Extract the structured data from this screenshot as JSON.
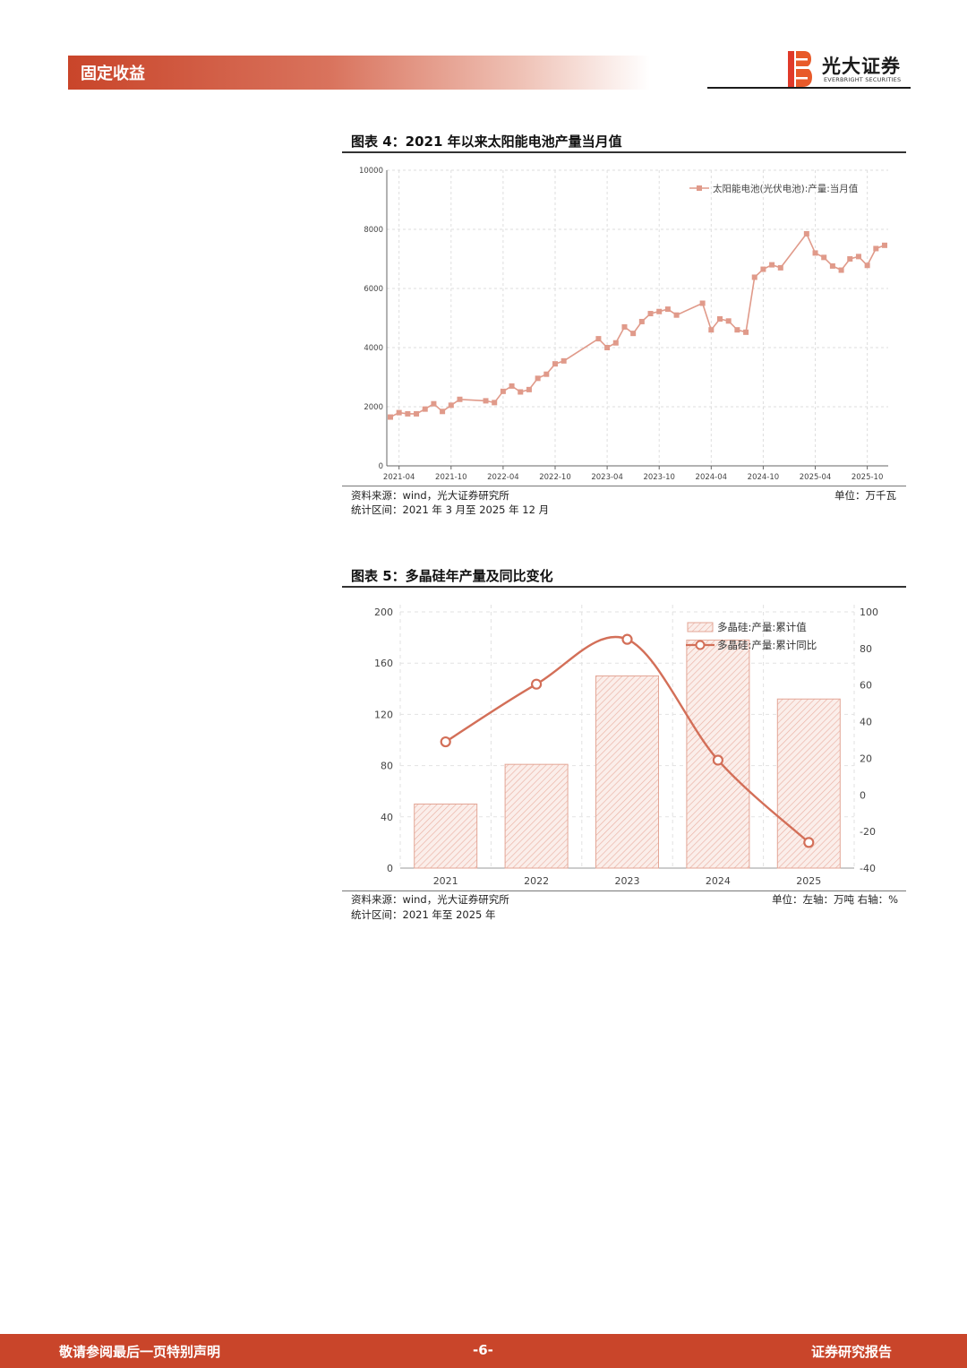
{
  "header": {
    "section": "固定收益",
    "brand_cn": "光大证券",
    "brand_en": "EVERBRIGHT SECURITIES"
  },
  "figure4": {
    "title": "图表 4：2021 年以来太阳能电池产量当月值",
    "source": "资料来源：wind，光大证券研究所",
    "unit": "单位：万千瓦",
    "period": "统计区间：2021 年 3 月至 2025 年 12 月"
  },
  "figure5": {
    "title": "图表 5：多晶硅年产量及同比变化",
    "source": "资料来源：wind，光大证券研究所",
    "unit": "单位：左轴：万吨  右轴：%",
    "period": "统计区间：2021 年至 2025 年"
  },
  "footer": {
    "left": "敬请参阅最后一页特别声明",
    "page": "-6-",
    "right": "证券研究报告"
  },
  "colors": {
    "accent": "#c9452a",
    "line4": "#e09a8a",
    "line5": "#d36f58"
  },
  "chart_data": [
    {
      "type": "line",
      "x_ticks": [
        "2021-04",
        "2021-10",
        "2022-04",
        "2022-10",
        "2023-04",
        "2023-10",
        "2024-04",
        "2024-10",
        "2025-04",
        "2025-10"
      ],
      "ylim": [
        0,
        10000
      ],
      "y_ticks": [
        "0",
        "2000",
        "4000",
        "6000",
        "8000",
        "10000"
      ],
      "grid": true,
      "legend": "top-right",
      "series": [
        {
          "name": "太阳能电池(光伏电池):产量:当月值",
          "points": [
            [
              "2021-03",
              1650
            ],
            [
              "2021-04",
              1800
            ],
            [
              "2021-05",
              1760
            ],
            [
              "2021-06",
              1760
            ],
            [
              "2021-07",
              1920
            ],
            [
              "2021-08",
              2100
            ],
            [
              "2021-09",
              1840
            ],
            [
              "2021-10",
              2050
            ],
            [
              "2021-11",
              2250
            ],
            [
              "2022-02",
              2200
            ],
            [
              "2022-03",
              2140
            ],
            [
              "2022-04",
              2520
            ],
            [
              "2022-05",
              2700
            ],
            [
              "2022-06",
              2500
            ],
            [
              "2022-07",
              2580
            ],
            [
              "2022-08",
              2960
            ],
            [
              "2022-09",
              3100
            ],
            [
              "2022-10",
              3450
            ],
            [
              "2022-11",
              3550
            ],
            [
              "2023-03",
              4300
            ],
            [
              "2023-04",
              4000
            ],
            [
              "2023-05",
              4160
            ],
            [
              "2023-06",
              4700
            ],
            [
              "2023-07",
              4480
            ],
            [
              "2023-08",
              4880
            ],
            [
              "2023-09",
              5150
            ],
            [
              "2023-10",
              5220
            ],
            [
              "2023-11",
              5300
            ],
            [
              "2023-12",
              5100
            ],
            [
              "2024-03",
              5500
            ],
            [
              "2024-04",
              4600
            ],
            [
              "2024-05",
              4970
            ],
            [
              "2024-06",
              4900
            ],
            [
              "2024-07",
              4600
            ],
            [
              "2024-08",
              4520
            ],
            [
              "2024-09",
              6380
            ],
            [
              "2024-10",
              6650
            ],
            [
              "2024-11",
              6800
            ],
            [
              "2024-12",
              6700
            ],
            [
              "2025-03",
              7850
            ],
            [
              "2025-04",
              7200
            ],
            [
              "2025-05",
              7050
            ],
            [
              "2025-06",
              6760
            ],
            [
              "2025-07",
              6620
            ],
            [
              "2025-08",
              7000
            ],
            [
              "2025-09",
              7080
            ],
            [
              "2025-10",
              6780
            ],
            [
              "2025-11",
              7350
            ],
            [
              "2025-12",
              7460
            ]
          ]
        }
      ]
    },
    {
      "type": "bar+line",
      "categories": [
        "2021",
        "2022",
        "2023",
        "2024",
        "2025"
      ],
      "series": [
        {
          "name": "多晶硅:产量:累计值",
          "axis": "left",
          "type": "bar",
          "values": [
            50,
            81,
            150,
            178,
            132
          ]
        },
        {
          "name": "多晶硅:产量:累计同比",
          "axis": "right",
          "type": "line",
          "values": [
            29,
            60.5,
            85,
            19,
            -26
          ]
        }
      ],
      "ylim_left": [
        0,
        200
      ],
      "y_ticks_left": [
        "0",
        "40",
        "80",
        "120",
        "160",
        "200"
      ],
      "ylim_right": [
        -40,
        100
      ],
      "y_ticks_right": [
        "-40",
        "-20",
        "0",
        "20",
        "40",
        "60",
        "80",
        "100"
      ],
      "grid": true,
      "legend": "top-right"
    }
  ]
}
